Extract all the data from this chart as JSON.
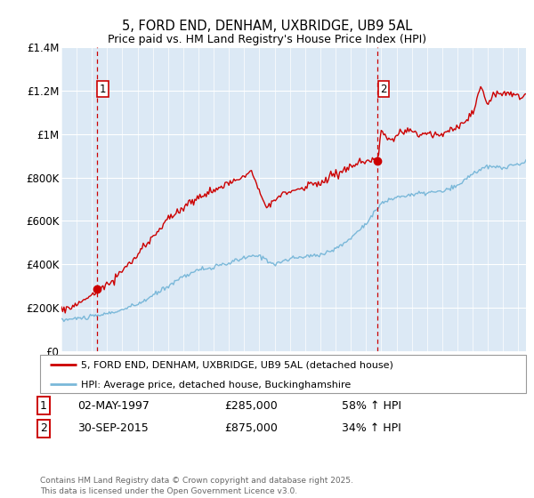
{
  "title": "5, FORD END, DENHAM, UXBRIDGE, UB9 5AL",
  "subtitle": "Price paid vs. HM Land Registry's House Price Index (HPI)",
  "background_color": "#dce9f5",
  "grid_color": "#ffffff",
  "red_line_color": "#cc0000",
  "blue_line_color": "#7ab8d9",
  "sale1_date_num": 1997.33,
  "sale1_price": 285000,
  "sale2_date_num": 2015.75,
  "sale2_price": 875000,
  "xmin": 1995.0,
  "xmax": 2025.5,
  "ymin": 0,
  "ymax": 1400000,
  "yticks": [
    0,
    200000,
    400000,
    600000,
    800000,
    1000000,
    1200000,
    1400000
  ],
  "ytick_labels": [
    "£0",
    "£200K",
    "£400K",
    "£600K",
    "£800K",
    "£1M",
    "£1.2M",
    "£1.4M"
  ],
  "legend_line1": "5, FORD END, DENHAM, UXBRIDGE, UB9 5AL (detached house)",
  "legend_line2": "HPI: Average price, detached house, Buckinghamshire",
  "annotation1_date": "02-MAY-1997",
  "annotation1_price": "£285,000",
  "annotation1_hpi": "58% ↑ HPI",
  "annotation2_date": "30-SEP-2015",
  "annotation2_price": "£875,000",
  "annotation2_hpi": "34% ↑ HPI",
  "footer": "Contains HM Land Registry data © Crown copyright and database right 2025.\nThis data is licensed under the Open Government Licence v3.0."
}
